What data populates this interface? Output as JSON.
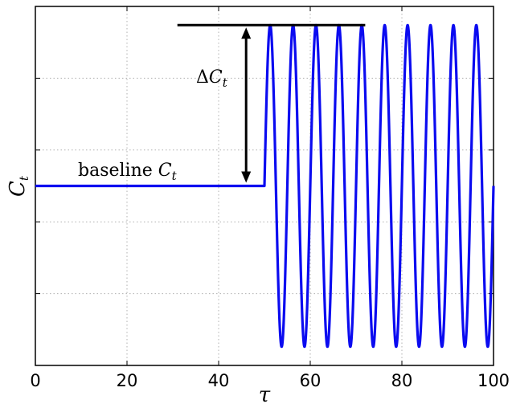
{
  "chart_data": {
    "type": "line",
    "xlabel": "τ",
    "ylabel": {
      "main": "C",
      "sub": "t"
    },
    "xlim": [
      0,
      100
    ],
    "ylim": [
      -1.25,
      1.25
    ],
    "xticks": [
      "0",
      "20",
      "40",
      "60",
      "80",
      "100"
    ],
    "xtick_values": [
      0,
      20,
      40,
      60,
      80,
      100
    ],
    "ytick_values": [
      -0.75,
      -0.25,
      0.25,
      0.75
    ],
    "yticks_labeled": false,
    "grid": true,
    "series": [
      {
        "color": "#0b0bf0",
        "baseline": {
          "x": [
            0,
            50
          ],
          "y": 0
        },
        "oscillation": {
          "x_start": 50,
          "x_end": 100,
          "period": 5,
          "amplitude": 1.12,
          "center": 0
        }
      }
    ],
    "annotations": {
      "baseline_label": {
        "text": "baseline ",
        "symbol": "C",
        "sub": "t"
      },
      "delta_label": {
        "text": "Δ",
        "symbol": "C",
        "sub": "t"
      },
      "peak_line": {
        "x": [
          31,
          72
        ],
        "y": 1.12
      },
      "arrow": {
        "x": 46,
        "y": [
          0.0,
          1.12
        ]
      }
    }
  }
}
